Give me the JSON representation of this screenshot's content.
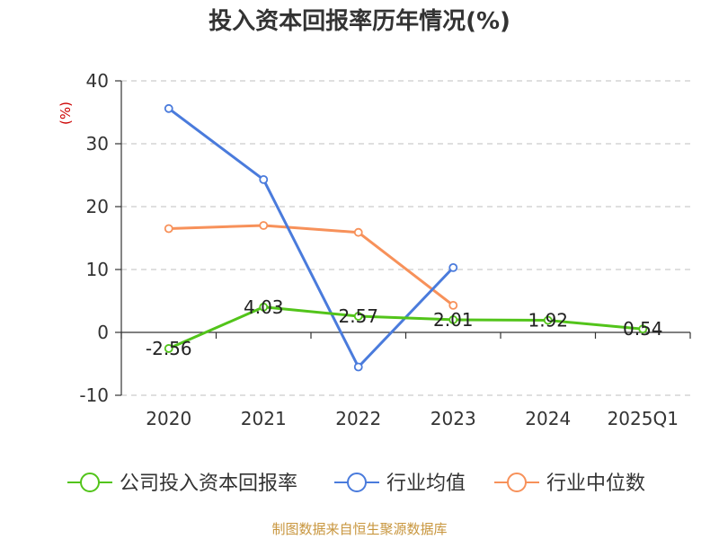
{
  "chart_data": {
    "type": "line",
    "title": "投入资本回报率历年情况(%)",
    "ylabel": "(%)",
    "categories": [
      "2020",
      "2021",
      "2022",
      "2023",
      "2024",
      "2025Q1"
    ],
    "ylim": [
      -10,
      40
    ],
    "yticks": [
      -10,
      0,
      10,
      20,
      30,
      40
    ],
    "grid": true,
    "legend_position": "bottom",
    "series": [
      {
        "name": "公司投入资本回报率",
        "color": "#52c41a",
        "values": [
          -2.56,
          4.03,
          2.57,
          2.01,
          1.92,
          0.54
        ],
        "labels": [
          "-2.56",
          "4.03",
          "2.57",
          "2.01",
          "1.92",
          "0.54"
        ]
      },
      {
        "name": "行业均值",
        "color": "#4a7bdc",
        "values": [
          35.6,
          24.3,
          -5.5,
          10.3,
          null,
          null
        ]
      },
      {
        "name": "行业中位数",
        "color": "#f7915a",
        "values": [
          16.5,
          17.0,
          15.9,
          4.3,
          null,
          null
        ]
      }
    ],
    "source": "制图数据来自恒生聚源数据库"
  }
}
